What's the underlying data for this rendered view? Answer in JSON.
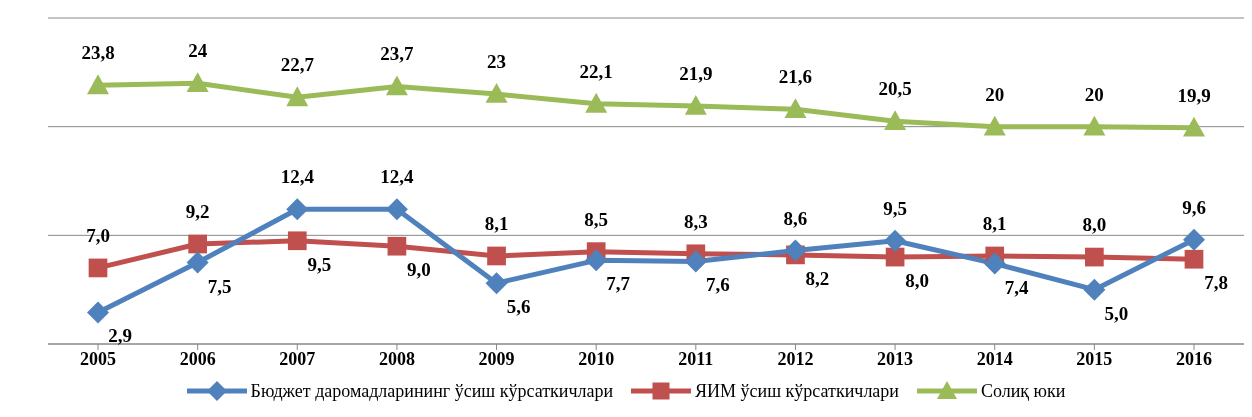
{
  "chart_data": {
    "type": "line",
    "categories": [
      "2005",
      "2006",
      "2007",
      "2008",
      "2009",
      "2010",
      "2011",
      "2012",
      "2013",
      "2014",
      "2015",
      "2016"
    ],
    "ylim": [
      0,
      30
    ],
    "yticks": [
      {
        "value": 0,
        "label": null
      },
      {
        "value": 10,
        "label": null
      },
      {
        "value": 20,
        "label": null
      },
      {
        "value": 30,
        "label": null
      }
    ],
    "tick_labels": "x",
    "grid": "y",
    "legend": "bottom",
    "series": [
      {
        "name": "Бюджет даромадларининг ўсиш кўрсаткичлари",
        "color": "#4f81bd",
        "marker": "diamond",
        "values": [
          2.9,
          7.5,
          12.4,
          12.4,
          5.6,
          7.7,
          7.6,
          8.6,
          9.5,
          7.4,
          5.0,
          9.6
        ],
        "value_labels": [
          "2,9",
          "7,5",
          "12,4",
          "12,4",
          "5,6",
          "7,7",
          "7,6",
          "8,6",
          "9,5",
          "7,4",
          "5,0",
          "9,6"
        ]
      },
      {
        "name": "ЯИМ ўсиш кўрсаткичлари",
        "color": "#c0504d",
        "marker": "square",
        "values": [
          7.0,
          9.2,
          9.5,
          9.0,
          8.1,
          8.5,
          8.3,
          8.2,
          8.0,
          8.1,
          8.0,
          7.8
        ],
        "value_labels": [
          "7,0",
          "9,2",
          "9,5",
          "9,0",
          "8,1",
          "8,5",
          "8,3",
          "8,2",
          "8,0",
          "8,1",
          "8,0",
          "7,8"
        ]
      },
      {
        "name": "Солиқ юки",
        "color": "#9bbb59",
        "marker": "triangle",
        "values": [
          23.8,
          24,
          22.7,
          23.7,
          23,
          22.1,
          21.9,
          21.6,
          20.5,
          20,
          20,
          19.9
        ],
        "value_labels": [
          "23,8",
          "24",
          "22,7",
          "23,7",
          "23",
          "22,1",
          "21,9",
          "21,6",
          "20,5",
          "20",
          "20",
          "19,9"
        ]
      }
    ]
  }
}
